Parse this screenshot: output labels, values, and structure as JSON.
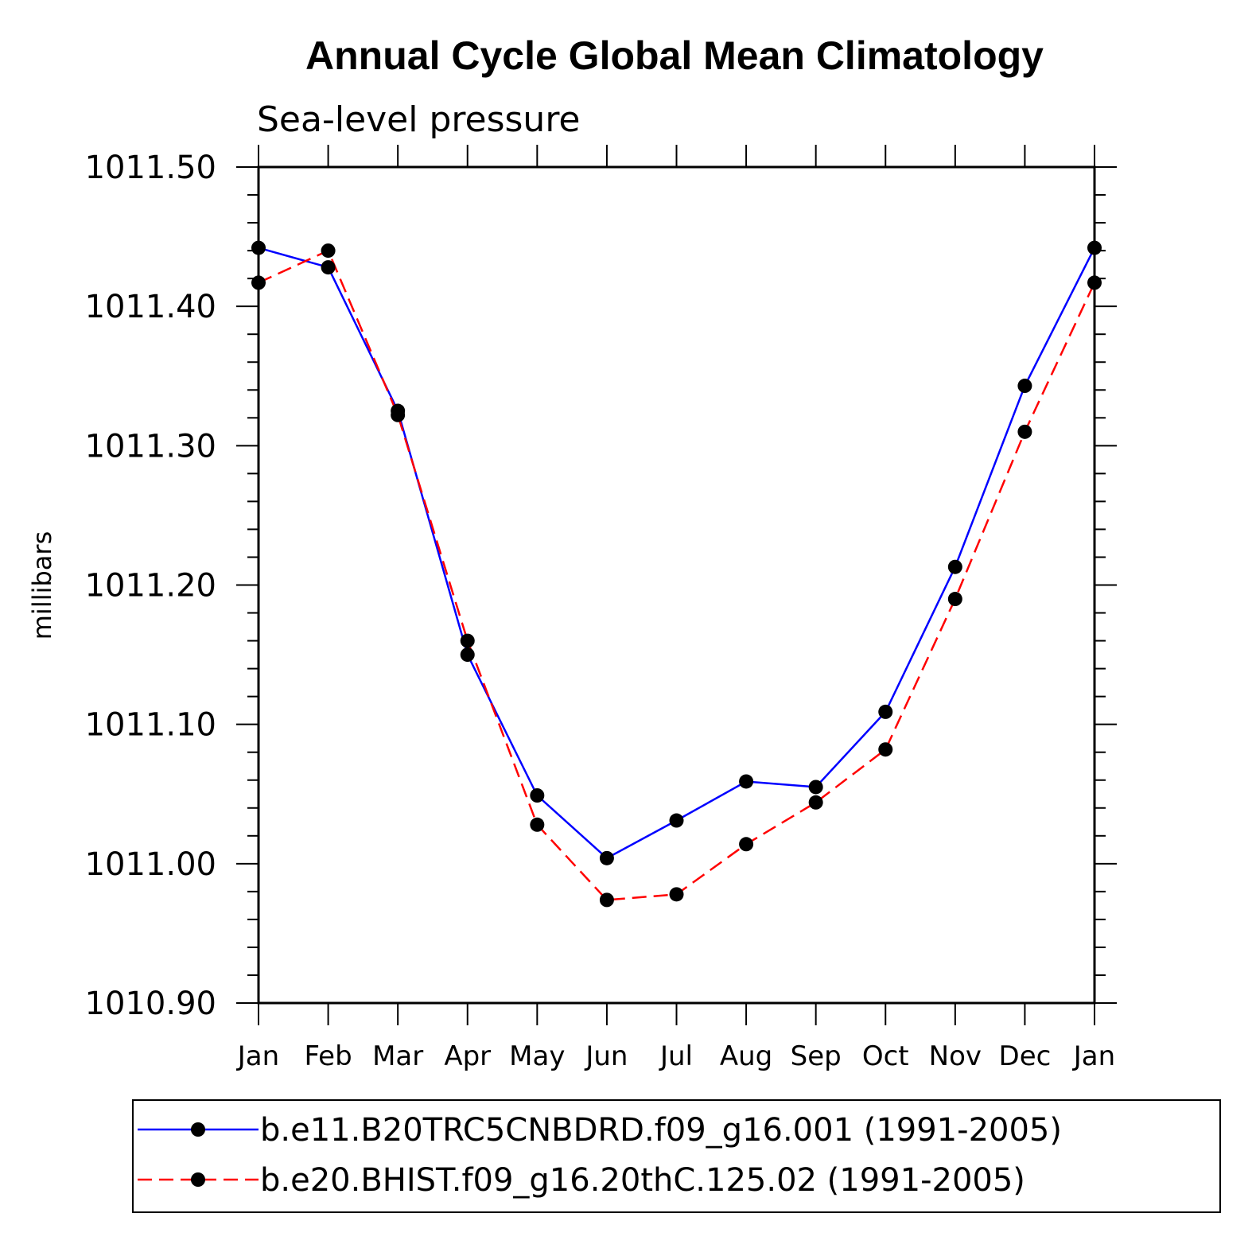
{
  "chart_data": {
    "type": "line",
    "title": "Annual Cycle Global Mean Climatology",
    "subtitle": "Sea-level pressure",
    "xlabel": "",
    "ylabel": "millibars",
    "categories": [
      "Jan",
      "Feb",
      "Mar",
      "Apr",
      "May",
      "Jun",
      "Jul",
      "Aug",
      "Sep",
      "Oct",
      "Nov",
      "Dec",
      "Jan"
    ],
    "ylim": [
      1010.9,
      1011.5
    ],
    "yticks": [
      "1010.90",
      "1011.00",
      "1011.10",
      "1011.20",
      "1011.30",
      "1011.40",
      "1011.50"
    ],
    "series": [
      {
        "name": "b.e11.B20TRC5CNBDRD.f09_g16.001 (1991-2005)",
        "color": "#0000ff",
        "style": "solid",
        "values": [
          1011.442,
          1011.428,
          1011.325,
          1011.15,
          1011.049,
          1011.004,
          1011.031,
          1011.059,
          1011.055,
          1011.109,
          1011.213,
          1011.343,
          1011.442
        ]
      },
      {
        "name": "b.e20.BHIST.f09_g16.20thC.125.02 (1991-2005)",
        "color": "#ff0000",
        "style": "dashed",
        "values": [
          1011.417,
          1011.44,
          1011.322,
          1011.16,
          1011.028,
          1010.974,
          1010.978,
          1011.014,
          1011.044,
          1011.082,
          1011.19,
          1011.31,
          1011.417
        ]
      }
    ],
    "legend": {
      "placement": "bottom"
    }
  }
}
